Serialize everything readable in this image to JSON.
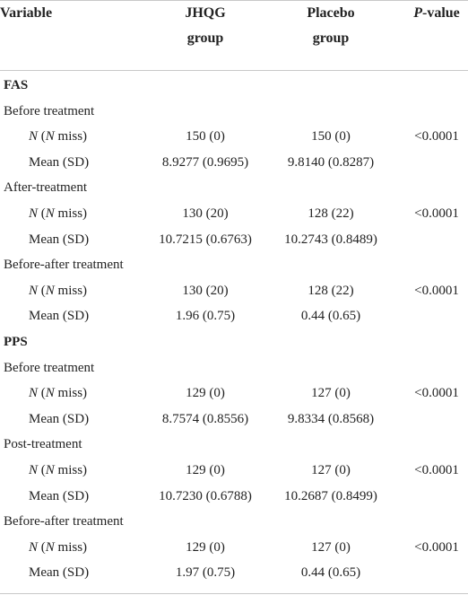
{
  "table": {
    "header": [
      {
        "lines": [
          [
            {
              "text": "Variable"
            }
          ]
        ]
      },
      {
        "lines": [
          [
            {
              "text": "JHQG"
            }
          ],
          [
            {
              "text": "group"
            }
          ]
        ]
      },
      {
        "lines": [
          [
            {
              "text": "Placebo"
            }
          ],
          [
            {
              "text": "group"
            }
          ]
        ]
      },
      {
        "lines": [
          [
            {
              "text": "P",
              "italic": true
            },
            {
              "text": "-value"
            }
          ]
        ]
      }
    ],
    "rows": [
      {
        "kind": "section",
        "label": [
          {
            "text": "FAS"
          }
        ]
      },
      {
        "kind": "group",
        "label": [
          {
            "text": "Before treatment"
          }
        ]
      },
      {
        "kind": "data",
        "label": [
          {
            "text": "N",
            "italic": true
          },
          {
            "text": " ("
          },
          {
            "text": "N",
            "italic": true
          },
          {
            "text": " miss)"
          }
        ],
        "cells": [
          "150 (0)",
          "150 (0)",
          "<0.0001"
        ]
      },
      {
        "kind": "data",
        "label": [
          {
            "text": "Mean (SD)"
          }
        ],
        "cells": [
          "8.9277 (0.9695)",
          "9.8140 (0.8287)",
          ""
        ]
      },
      {
        "kind": "group",
        "label": [
          {
            "text": "After-treatment"
          }
        ]
      },
      {
        "kind": "data",
        "label": [
          {
            "text": "N",
            "italic": true
          },
          {
            "text": " ("
          },
          {
            "text": "N",
            "italic": true
          },
          {
            "text": " miss)"
          }
        ],
        "cells": [
          "130 (20)",
          "128 (22)",
          "<0.0001"
        ]
      },
      {
        "kind": "data",
        "label": [
          {
            "text": "Mean (SD)"
          }
        ],
        "cells": [
          "10.7215 (0.6763)",
          "10.2743 (0.8489)",
          ""
        ]
      },
      {
        "kind": "group",
        "label": [
          {
            "text": "Before-after treatment"
          }
        ]
      },
      {
        "kind": "data",
        "label": [
          {
            "text": "N",
            "italic": true
          },
          {
            "text": " ("
          },
          {
            "text": "N",
            "italic": true
          },
          {
            "text": " miss)"
          }
        ],
        "cells": [
          "130 (20)",
          "128 (22)",
          "<0.0001"
        ]
      },
      {
        "kind": "data",
        "label": [
          {
            "text": "Mean (SD)"
          }
        ],
        "cells": [
          "1.96 (0.75)",
          "0.44 (0.65)",
          ""
        ]
      },
      {
        "kind": "section",
        "label": [
          {
            "text": "PPS"
          }
        ]
      },
      {
        "kind": "group",
        "label": [
          {
            "text": "Before treatment"
          }
        ]
      },
      {
        "kind": "data",
        "label": [
          {
            "text": "N",
            "italic": true
          },
          {
            "text": " ("
          },
          {
            "text": "N",
            "italic": true
          },
          {
            "text": " miss)"
          }
        ],
        "cells": [
          "129 (0)",
          "127 (0)",
          "<0.0001"
        ]
      },
      {
        "kind": "data",
        "label": [
          {
            "text": "Mean (SD)"
          }
        ],
        "cells": [
          "8.7574 (0.8556)",
          "9.8334 (0.8568)",
          ""
        ]
      },
      {
        "kind": "group",
        "label": [
          {
            "text": "Post-treatment"
          }
        ]
      },
      {
        "kind": "data",
        "label": [
          {
            "text": "N",
            "italic": true
          },
          {
            "text": " ("
          },
          {
            "text": "N",
            "italic": true
          },
          {
            "text": " miss)"
          }
        ],
        "cells": [
          "129 (0)",
          "127 (0)",
          "<0.0001"
        ]
      },
      {
        "kind": "data",
        "label": [
          {
            "text": "Mean (SD)"
          }
        ],
        "cells": [
          "10.7230 (0.6788)",
          "10.2687 (0.8499)",
          ""
        ]
      },
      {
        "kind": "group",
        "label": [
          {
            "text": "Before-after treatment"
          }
        ]
      },
      {
        "kind": "data",
        "label": [
          {
            "text": "N",
            "italic": true
          },
          {
            "text": " ("
          },
          {
            "text": "N",
            "italic": true
          },
          {
            "text": " miss)"
          }
        ],
        "cells": [
          "129 (0)",
          "127 (0)",
          "<0.0001"
        ]
      },
      {
        "kind": "data",
        "label": [
          {
            "text": "Mean (SD)"
          }
        ],
        "cells": [
          "1.97 (0.75)",
          "0.44 (0.65)",
          ""
        ]
      }
    ]
  }
}
